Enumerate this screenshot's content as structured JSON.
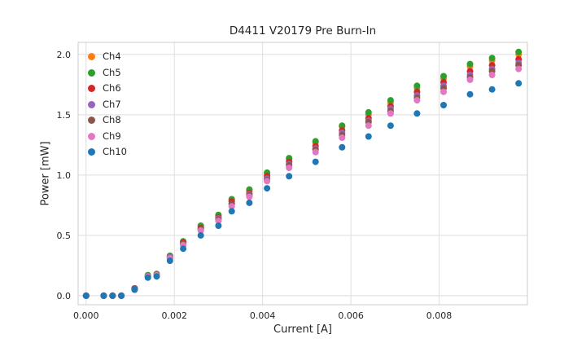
{
  "chart_data": {
    "type": "scatter",
    "title": "D4411 V20179 Pre Burn-In",
    "xlabel": "Current [A]",
    "ylabel": "Power [mW]",
    "grid": true,
    "legend_position": "upper-left",
    "xlim": [
      -0.00018,
      0.01
    ],
    "ylim": [
      -0.075,
      2.1
    ],
    "xticks": [
      0,
      0.002,
      0.004,
      0.006,
      0.008
    ],
    "xtick_labels": [
      "0.000",
      "0.002",
      "0.004",
      "0.006",
      "0.008"
    ],
    "yticks": [
      0,
      0.5,
      1.0,
      1.5,
      2.0
    ],
    "ytick_labels": [
      "0.0",
      "0.5",
      "1.0",
      "1.5",
      "2.0"
    ],
    "x": [
      0.0,
      0.0004,
      0.0006,
      0.0008,
      0.0011,
      0.0014,
      0.0016,
      0.0019,
      0.0022,
      0.0026,
      0.003,
      0.0033,
      0.0037,
      0.0041,
      0.0046,
      0.0052,
      0.0058,
      0.0064,
      0.0069,
      0.0075,
      0.0081,
      0.0087,
      0.0092,
      0.0098
    ],
    "series": [
      {
        "name": "Ch4",
        "color": "#ff7f0e",
        "values": [
          0.0,
          0.0,
          0.0,
          0.0,
          0.06,
          0.17,
          0.18,
          0.33,
          0.45,
          0.57,
          0.66,
          0.79,
          0.87,
          1.01,
          1.13,
          1.27,
          1.4,
          1.5,
          1.6,
          1.72,
          1.8,
          1.9,
          1.95,
          2.0
        ]
      },
      {
        "name": "Ch5",
        "color": "#2ca02c",
        "values": [
          0.0,
          0.0,
          0.0,
          0.0,
          0.06,
          0.17,
          0.18,
          0.33,
          0.45,
          0.58,
          0.67,
          0.8,
          0.88,
          1.02,
          1.14,
          1.28,
          1.41,
          1.52,
          1.62,
          1.74,
          1.82,
          1.92,
          1.97,
          2.02
        ]
      },
      {
        "name": "Ch6",
        "color": "#d62728",
        "values": [
          0.0,
          0.0,
          0.0,
          0.0,
          0.06,
          0.16,
          0.17,
          0.32,
          0.44,
          0.56,
          0.65,
          0.78,
          0.85,
          0.99,
          1.11,
          1.24,
          1.37,
          1.47,
          1.57,
          1.69,
          1.77,
          1.86,
          1.91,
          1.96
        ]
      },
      {
        "name": "Ch7",
        "color": "#9467bd",
        "values": [
          0.0,
          0.0,
          0.0,
          0.0,
          0.06,
          0.16,
          0.17,
          0.32,
          0.43,
          0.55,
          0.64,
          0.76,
          0.84,
          0.97,
          1.09,
          1.22,
          1.35,
          1.45,
          1.55,
          1.66,
          1.74,
          1.83,
          1.88,
          1.93
        ]
      },
      {
        "name": "Ch8",
        "color": "#8c564b",
        "values": [
          0.0,
          0.0,
          0.0,
          0.0,
          0.06,
          0.16,
          0.17,
          0.31,
          0.43,
          0.55,
          0.63,
          0.76,
          0.83,
          0.96,
          1.08,
          1.21,
          1.33,
          1.44,
          1.53,
          1.64,
          1.72,
          1.81,
          1.86,
          1.91
        ]
      },
      {
        "name": "Ch9",
        "color": "#e377c2",
        "values": [
          0.0,
          0.0,
          0.0,
          0.0,
          0.05,
          0.16,
          0.17,
          0.31,
          0.42,
          0.54,
          0.62,
          0.74,
          0.82,
          0.95,
          1.06,
          1.19,
          1.31,
          1.41,
          1.51,
          1.62,
          1.69,
          1.79,
          1.83,
          1.88
        ]
      },
      {
        "name": "Ch10",
        "color": "#1f77b4",
        "values": [
          0.0,
          0.0,
          0.0,
          0.0,
          0.05,
          0.15,
          0.16,
          0.29,
          0.39,
          0.5,
          0.58,
          0.7,
          0.77,
          0.89,
          0.99,
          1.11,
          1.23,
          1.32,
          1.41,
          1.51,
          1.58,
          1.67,
          1.71,
          1.76
        ]
      }
    ]
  }
}
